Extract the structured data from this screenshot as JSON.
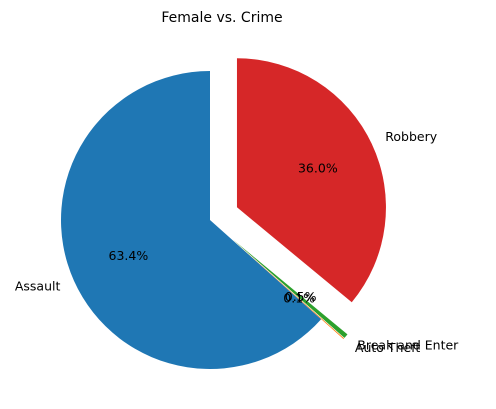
{
  "chart_data": {
    "type": "pie",
    "title": "Female vs. Crime",
    "slices": [
      {
        "label": "Assault",
        "value": 63.4,
        "pct_label": "63.4%",
        "color": "#1f77b4",
        "exploded": false
      },
      {
        "label": "Auto Theft",
        "value": 0.1,
        "pct_label": "0.1%",
        "color": "#ff7f0e",
        "exploded": true
      },
      {
        "label": "Break and Enter",
        "value": 0.5,
        "pct_label": "0.5%",
        "color": "#2ca02c",
        "exploded": true
      },
      {
        "label": "Robbery",
        "value": 36.0,
        "pct_label": "36.0%",
        "color": "#d62728",
        "exploded": true
      }
    ],
    "start_angle_deg": 90,
    "direction": "counterclockwise"
  }
}
